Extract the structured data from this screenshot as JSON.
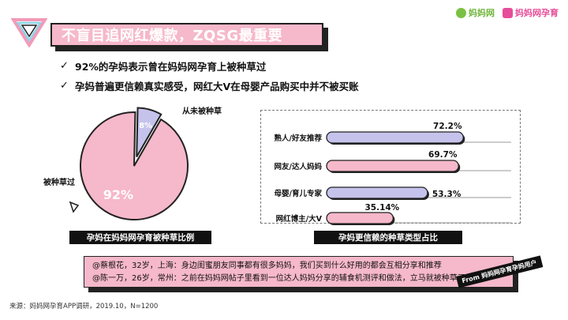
{
  "brand": {
    "logo1_text": "妈妈网",
    "logo2_text": "妈妈网孕育"
  },
  "title": "不盲目追网红爆款，ZQSG最重要",
  "bullets": [
    "92%的孕妈表示曾在妈妈网孕育上被种草过",
    "孕妈普遍更信赖真实感受，网红大V在母婴产品购买中并不被买账"
  ],
  "colors": {
    "pink": "#f6b8cb",
    "lavender": "#c5c3ec",
    "dark": "#222222"
  },
  "chart_data": [
    {
      "type": "pie",
      "slices": [
        {
          "label": "被种草过",
          "value": 92,
          "value_label": "92%"
        },
        {
          "label": "从未被种草",
          "value": 8,
          "value_label": "8%"
        }
      ],
      "caption": "孕妈在妈妈网孕育被种草比例"
    },
    {
      "type": "bar",
      "orientation": "horizontal",
      "categories": [
        "熟人/好友推荐",
        "网友/达人妈妈",
        "母婴/育儿专家",
        "网红博主/大V"
      ],
      "values": [
        72.2,
        69.7,
        53.3,
        35.14
      ],
      "value_labels": [
        "72.2%",
        "69.7%",
        "53.3%",
        "35.14%"
      ],
      "bar_colors": [
        "#c5c3ec",
        "#f6b8cb",
        "#c5c3ec",
        "#f6b8cb"
      ],
      "xlim": [
        0,
        100
      ],
      "caption": "孕妈更信赖的种草类型占比"
    }
  ],
  "quotes": [
    "@蔡根花，32岁，上海：身边闺蜜朋友同事都有很多妈妈，我们买到什么好用的都会互相分享和推荐",
    "@陈一万，26岁，常州：之前在妈妈网帖子里看到一位达人妈妈分享的辅食机测评和做法，立马就被种草了"
  ],
  "from_tag": "From 妈妈网孕育孕妈用户",
  "source": "来源：妈妈网孕育APP调研，2019.10，N=1200"
}
